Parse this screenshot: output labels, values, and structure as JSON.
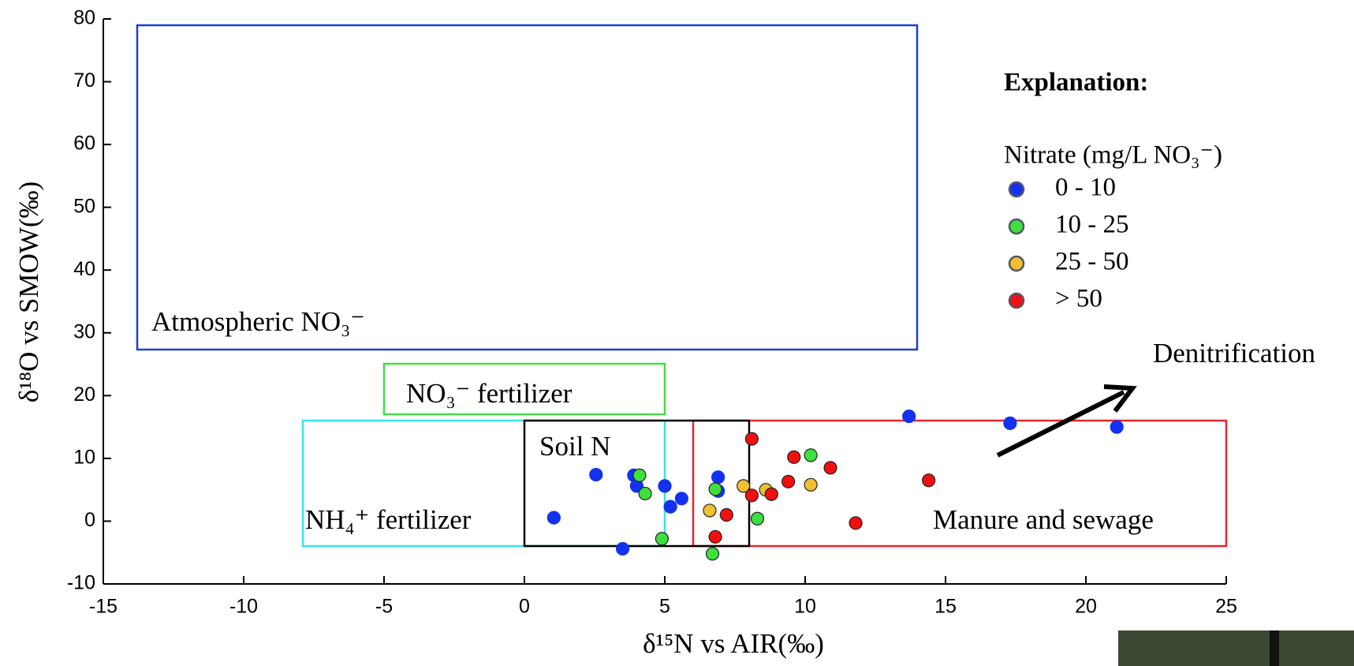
{
  "chart_data": {
    "type": "scatter",
    "x_label": "δ¹⁵N vs AIR(‰)",
    "y_label": "δ¹⁸O vs SMOW(‰)",
    "xlim": [
      -15,
      25
    ],
    "xticks": [
      -15,
      -10,
      -5,
      0,
      5,
      10,
      15,
      20,
      25
    ],
    "ylim": [
      -10,
      80
    ],
    "yticks": [
      -10,
      0,
      10,
      20,
      30,
      40,
      50,
      60,
      70,
      80
    ],
    "legend_title": "Explanation:",
    "legend_subtitle": "Nitrate (mg/L NO₃⁻)",
    "annotations": [
      "Atmospheric NO₃⁻",
      "NO₃⁻ fertilizer",
      "Soil N",
      "NH₄⁺ fertilizer",
      "Manure and sewage",
      "Denitrification"
    ],
    "series": [
      {
        "name": "0 - 10",
        "color": "#1232ee",
        "x": [
          1.05,
          2.55,
          3.9,
          4.0,
          5.0,
          5.2,
          5.6,
          3.5,
          6.9,
          6.9,
          13.7,
          17.3,
          21.1
        ],
        "values": [
          0.55,
          7.4,
          7.3,
          5.6,
          5.6,
          2.3,
          3.6,
          -4.4,
          7.0,
          4.8,
          16.7,
          15.6,
          15.0
        ]
      },
      {
        "name": "10 - 25",
        "color": "#3ee03e",
        "x": [
          4.1,
          4.3,
          4.9,
          6.8,
          6.7,
          8.3,
          10.2
        ],
        "values": [
          7.3,
          4.4,
          -2.8,
          5.1,
          -5.2,
          0.4,
          10.5
        ]
      },
      {
        "name": "25 - 50",
        "color": "#f0c030",
        "x": [
          6.6,
          7.8,
          8.6,
          10.2
        ],
        "values": [
          1.7,
          5.6,
          5.0,
          5.8
        ]
      },
      {
        "name": "> 50",
        "color": "#f01010",
        "x": [
          8.1,
          8.1,
          8.8,
          9.6,
          9.4,
          10.9,
          14.4,
          11.8,
          7.2,
          6.8
        ],
        "values": [
          13.1,
          4.1,
          4.3,
          10.2,
          6.3,
          8.5,
          6.5,
          -0.3,
          1.0,
          -2.5
        ]
      }
    ]
  }
}
